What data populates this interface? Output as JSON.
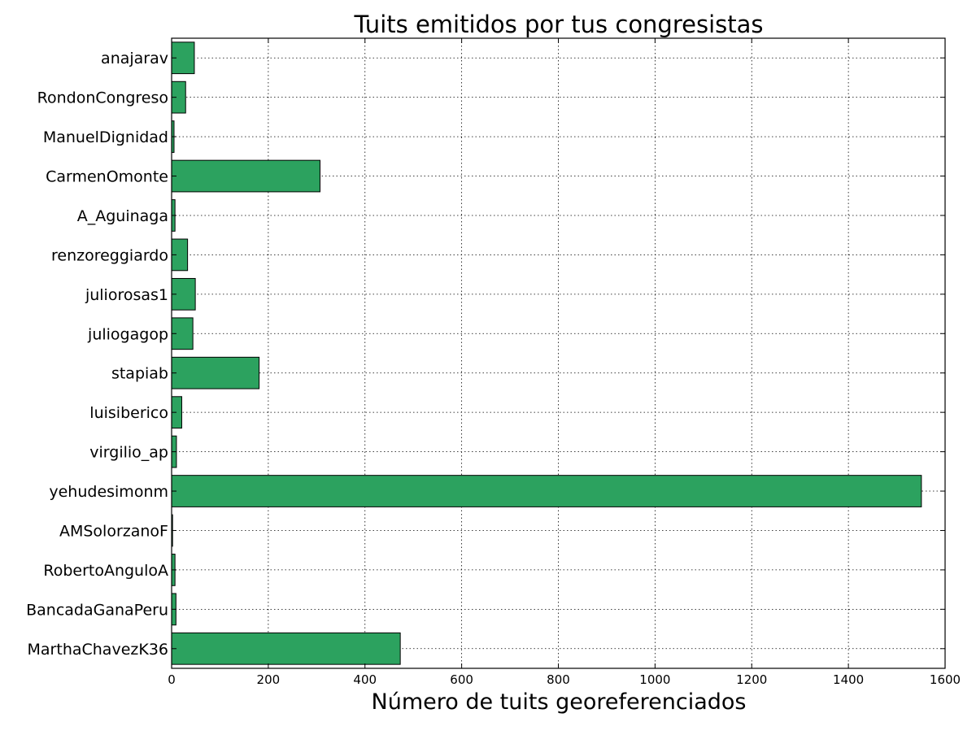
{
  "chart_data": {
    "type": "bar",
    "orientation": "horizontal",
    "title": "Tuits emitidos por tus congresistas",
    "xlabel": "Número de tuits georeferenciados",
    "ylabel": "",
    "xlim": [
      0,
      1600
    ],
    "xticks": [
      0,
      200,
      400,
      600,
      800,
      1000,
      1200,
      1400,
      1600
    ],
    "grid": true,
    "bar_color": "#2ca25f",
    "edge_color": "#000000",
    "categories": [
      "anajarav",
      "RondonCongreso",
      "ManuelDignidad",
      "CarmenOmonte",
      "A_Aguinaga",
      "renzoreggiardo",
      "juliorosas1",
      "juliogagop",
      "stapiab",
      "luisiberico",
      "virgilio_ap",
      "yehudesimonm",
      "AMSolorzanoF",
      "RobertoAnguloA",
      "BancadaGanaPeru",
      "MarthaChavezK36"
    ],
    "values": [
      47,
      29,
      5,
      307,
      7,
      33,
      49,
      44,
      181,
      21,
      10,
      1551,
      2,
      7,
      9,
      473
    ]
  }
}
